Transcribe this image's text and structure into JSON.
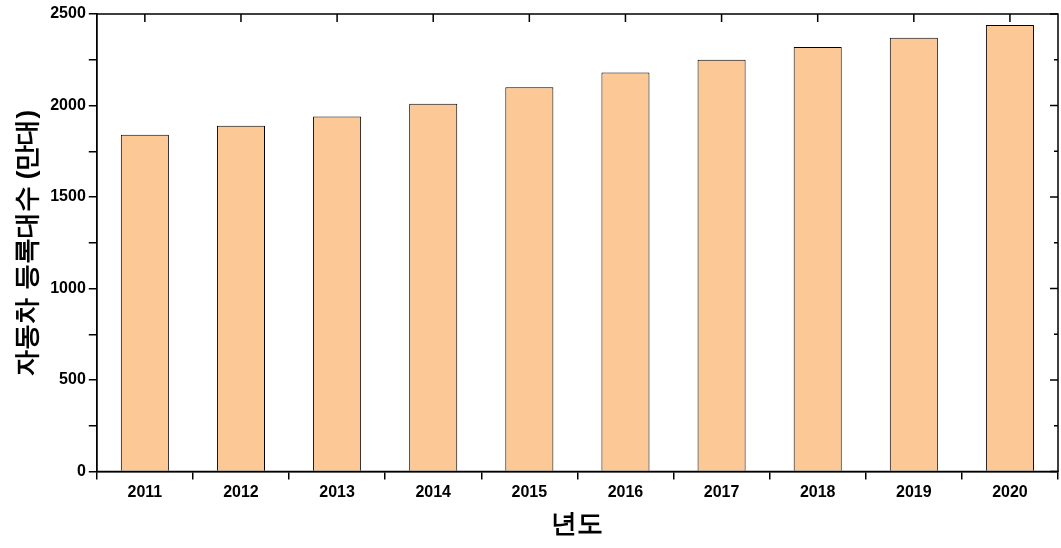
{
  "chart_data": {
    "type": "bar",
    "xlabel": "년도",
    "ylabel": "자동차 등록대수 (만대)",
    "categories": [
      "2011",
      "2012",
      "2013",
      "2014",
      "2015",
      "2016",
      "2017",
      "2018",
      "2019",
      "2020"
    ],
    "values": [
      1840,
      1890,
      1940,
      2010,
      2100,
      2180,
      2250,
      2320,
      2370,
      2440
    ],
    "color": "#fbc896",
    "ylim": [
      0,
      2500
    ],
    "yticks": [
      0,
      {
        "value": 250,
        "label": null
      },
      500,
      {
        "value": 750,
        "label": null
      },
      1000,
      {
        "value": 1250,
        "label": null
      },
      1500,
      {
        "value": 1750,
        "label": null
      },
      2000,
      {
        "value": 2250,
        "label": null
      },
      2500
    ],
    "grid": false,
    "legend": false
  }
}
